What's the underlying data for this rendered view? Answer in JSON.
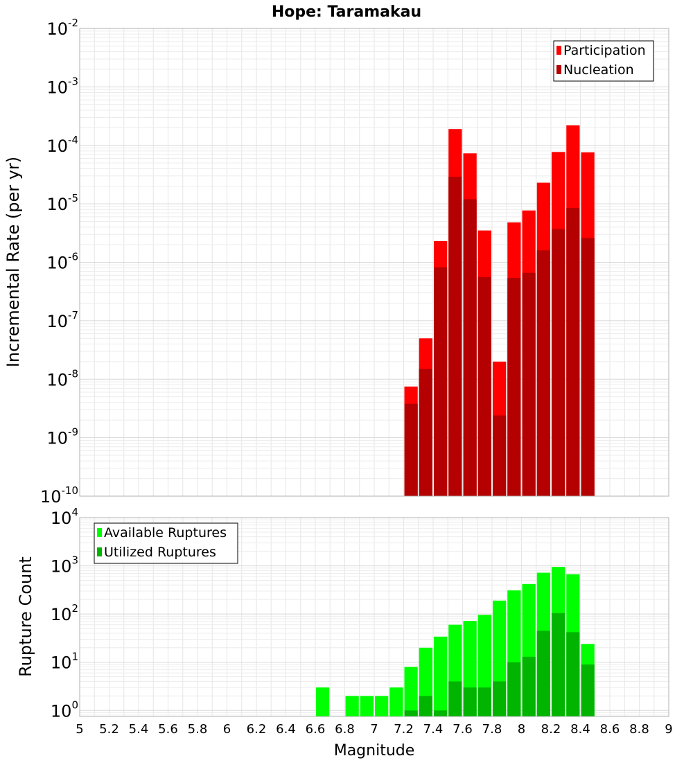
{
  "chart_data": {
    "title": "Hope: Taramakau",
    "xlabel": "Magnitude",
    "xlim": [
      5,
      9
    ],
    "xticks": [
      "5",
      "5.2",
      "5.4",
      "5.6",
      "5.8",
      "6",
      "6.2",
      "6.4",
      "6.6",
      "6.8",
      "7",
      "7.2",
      "7.4",
      "7.6",
      "7.8",
      "8",
      "8.2",
      "8.4",
      "8.6",
      "8.8",
      "9"
    ],
    "bin_width": 0.1,
    "colors": {
      "participation": "#ff0000",
      "nucleation": "#b40000",
      "available": "#00ff00",
      "utilized": "#00b400",
      "grid": "#e6e6e6",
      "frame": "#b0b0b0"
    },
    "panels": [
      {
        "type": "bar",
        "ylabel": "Incremental Rate (per yr)",
        "yscale": "log",
        "ylim": [
          1e-10,
          0.01
        ],
        "yticks": [
          {
            "base": "10",
            "exp": "-2"
          },
          {
            "base": "10",
            "exp": "-3"
          },
          {
            "base": "10",
            "exp": "-4"
          },
          {
            "base": "10",
            "exp": "-5"
          },
          {
            "base": "10",
            "exp": "-6"
          },
          {
            "base": "10",
            "exp": "-7"
          },
          {
            "base": "10",
            "exp": "-8"
          },
          {
            "base": "10",
            "exp": "-9"
          },
          {
            "base": "10",
            "exp": "-10"
          }
        ],
        "legend_position": "top-right",
        "x": [
          7.25,
          7.35,
          7.45,
          7.55,
          7.65,
          7.75,
          7.85,
          7.95,
          8.05,
          8.15,
          8.25,
          8.35,
          8.45
        ],
        "series": [
          {
            "name": "Participation",
            "key": "participation",
            "values": [
              7.5e-09,
              5e-08,
              2.3e-06,
              0.00019,
              7.3e-05,
              3.5e-06,
              2e-08,
              4.8e-06,
              7.7e-06,
              2.3e-05,
              7.7e-05,
              0.00022,
              7.6e-05
            ]
          },
          {
            "name": "Nucleation",
            "key": "nucleation",
            "values": [
              3.8e-09,
              1.5e-08,
              8.2e-07,
              2.9e-05,
              1.2e-05,
              5.6e-07,
              2.4e-09,
              5.4e-07,
              6.6e-07,
              1.6e-06,
              3.7e-06,
              8.5e-06,
              2.6e-06
            ]
          }
        ]
      },
      {
        "type": "bar",
        "ylabel": "Rupture Count",
        "yscale": "log",
        "ylim": [
          0.75,
          10000
        ],
        "yticks": [
          {
            "base": "10",
            "exp": "4"
          },
          {
            "base": "10",
            "exp": "3"
          },
          {
            "base": "10",
            "exp": "2"
          },
          {
            "base": "10",
            "exp": "1"
          },
          {
            "base": "10",
            "exp": "0"
          }
        ],
        "legend_position": "top-left",
        "x": [
          6.65,
          6.85,
          6.95,
          7.05,
          7.15,
          7.25,
          7.35,
          7.45,
          7.55,
          7.65,
          7.75,
          7.85,
          7.95,
          8.05,
          8.15,
          8.25,
          8.35,
          8.45
        ],
        "series": [
          {
            "name": "Available Ruptures",
            "key": "available",
            "values": [
              3,
              2,
              2,
              2,
              3,
              8,
              20,
              34,
              60,
              72,
              96,
              190,
              310,
              420,
              720,
              950,
              670,
              24
            ]
          },
          {
            "name": "Utilized Ruptures",
            "key": "utilized",
            "values": [
              0,
              0,
              0,
              0,
              0,
              1,
              2,
              1,
              4,
              3,
              3,
              4,
              10,
              13,
              45,
              105,
              42,
              9
            ]
          }
        ]
      }
    ]
  }
}
